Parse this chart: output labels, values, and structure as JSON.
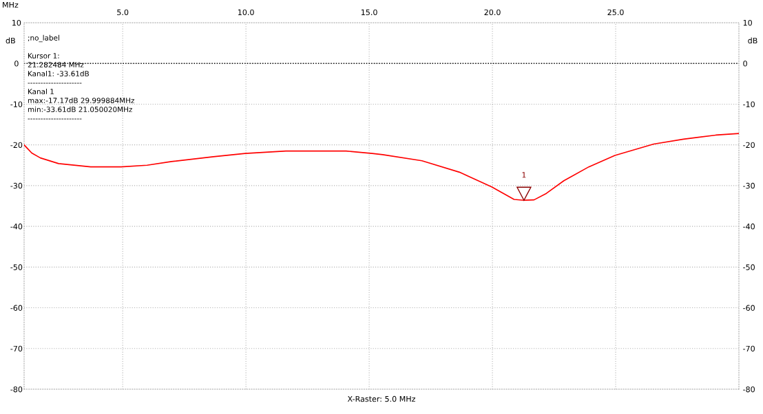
{
  "chart_data": {
    "type": "line",
    "xlabel": "MHz",
    "ylabel": "dB",
    "y2label": "dB",
    "x": [
      1.0,
      1.31,
      1.66,
      2.4,
      3.7,
      4.94,
      5.99,
      6.98,
      8.68,
      9.97,
      11.62,
      14.06,
      15.12,
      15.55,
      17.14,
      18.66,
      19.97,
      20.88,
      21.28,
      21.69,
      22.19,
      22.9,
      23.91,
      24.97,
      26.54,
      27.75,
      29.06,
      30.0
    ],
    "series": [
      {
        "color": "#ff0000",
        "values": [
          -20.0,
          -22.0,
          -23.2,
          -24.6,
          -25.4,
          -25.4,
          -25.0,
          -24.1,
          -22.9,
          -22.1,
          -21.5,
          -21.5,
          -22.1,
          -22.4,
          -23.9,
          -26.7,
          -30.3,
          -33.4,
          -33.6,
          -33.5,
          -31.9,
          -28.8,
          -25.4,
          -22.6,
          -19.8,
          -18.6,
          -17.6,
          -17.2
        ]
      }
    ],
    "xlim": [
      1.0,
      30.0
    ],
    "xticks": [
      {
        "value": 5,
        "label": "5.0"
      },
      {
        "value": 10,
        "label": "10.0"
      },
      {
        "value": 15,
        "label": "15.0"
      },
      {
        "value": 20,
        "label": "20.0"
      },
      {
        "value": 25,
        "label": "25.0"
      }
    ],
    "ylim": [
      -80,
      10
    ],
    "yticks": [
      -80,
      -70,
      -60,
      -50,
      -40,
      -30,
      -20,
      -10,
      0,
      10
    ],
    "y2lim": [
      -80,
      10
    ],
    "y2ticks": [
      -80,
      -70,
      -60,
      -50,
      -40,
      -30,
      -20,
      -10,
      0,
      10
    ],
    "grid": true,
    "legend": false,
    "marker": "none",
    "line_style": "solid",
    "ref_lines": [
      {
        "axis": "y",
        "value": 0,
        "color": "#000000",
        "line_style": "dotted"
      }
    ],
    "annotations": [
      {
        "text": "1",
        "x": 21.28,
        "y": -33.6
      },
      ";no_label",
      "Kursor 1:",
      "21.282484 MHz",
      "Kanal1: -33.61dB",
      "---------------------",
      "Kanal 1",
      "max:-17.17dB 29.999884MHz",
      "min:-33.61dB 21.050020MHz",
      "---------------------",
      "X-Raster: 5.0 MHz"
    ]
  }
}
